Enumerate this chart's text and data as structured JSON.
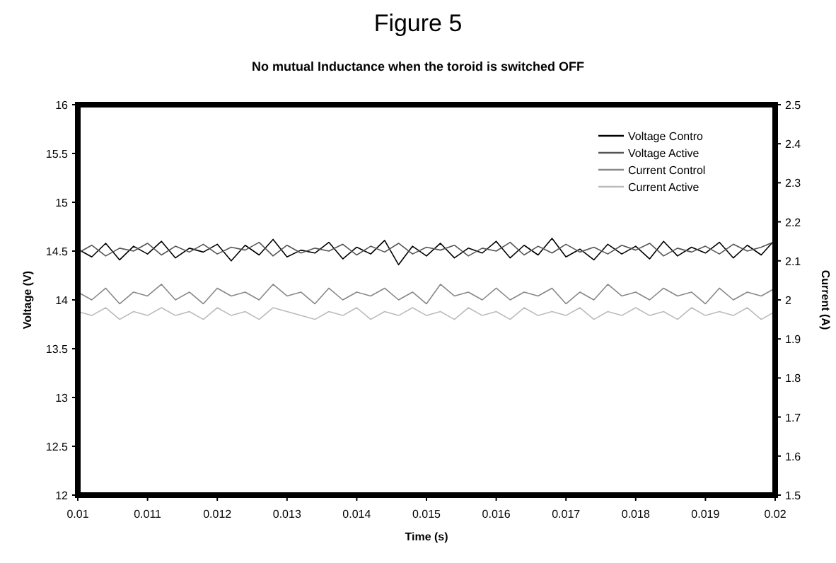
{
  "chart_data": {
    "type": "line",
    "title": "Figure 5",
    "subtitle": "No mutual Inductance when the toroid is switched OFF",
    "xlabel": "Time (s)",
    "ylabel": "Voltage (V)",
    "y2label": "Current (A)",
    "x": [
      0.01,
      0.0102,
      0.0104,
      0.0106,
      0.0108,
      0.011,
      0.0112,
      0.0114,
      0.0116,
      0.0118,
      0.012,
      0.0122,
      0.0124,
      0.0126,
      0.0128,
      0.013,
      0.0132,
      0.0134,
      0.0136,
      0.0138,
      0.014,
      0.0142,
      0.0144,
      0.0146,
      0.0148,
      0.015,
      0.0152,
      0.0154,
      0.0156,
      0.0158,
      0.016,
      0.0162,
      0.0164,
      0.0166,
      0.0168,
      0.017,
      0.0172,
      0.0174,
      0.0176,
      0.0178,
      0.018,
      0.0182,
      0.0184,
      0.0186,
      0.0188,
      0.019,
      0.0192,
      0.0194,
      0.0196,
      0.0198,
      0.02
    ],
    "xlim": [
      0.01,
      0.02
    ],
    "xticks": [
      0.01,
      0.011,
      0.012,
      0.013,
      0.014,
      0.015,
      0.016,
      0.017,
      0.018,
      0.019,
      0.02
    ],
    "ylim": [
      12,
      16
    ],
    "yticks": [
      12,
      12.5,
      13,
      13.5,
      14,
      14.5,
      15,
      15.5,
      16
    ],
    "y2lim": [
      1.5,
      2.5
    ],
    "y2ticks": [
      1.5,
      1.6,
      1.7,
      1.8,
      1.9,
      2,
      2.1,
      2.2,
      2.3,
      2.4,
      2.5
    ],
    "legend": "top right",
    "grid": false,
    "marker": "none",
    "series": [
      {
        "name": "Voltage Contro",
        "color": "#000000",
        "values": [
          14.52,
          14.44,
          14.58,
          14.41,
          14.55,
          14.47,
          14.6,
          14.43,
          14.53,
          14.49,
          14.57,
          14.4,
          14.56,
          14.46,
          14.62,
          14.44,
          14.51,
          14.48,
          14.59,
          14.42,
          14.54,
          14.47,
          14.61,
          14.36,
          14.55,
          14.45,
          14.58,
          14.43,
          14.53,
          14.48,
          14.6,
          14.43,
          14.56,
          14.46,
          14.63,
          14.44,
          14.52,
          14.41,
          14.57,
          14.47,
          14.55,
          14.42,
          14.6,
          14.45,
          14.54,
          14.48,
          14.59,
          14.43,
          14.56,
          14.46,
          14.62
        ]
      },
      {
        "name": "Voltage Active",
        "color": "#555555",
        "values": [
          14.48,
          14.56,
          14.45,
          14.53,
          14.5,
          14.58,
          14.46,
          14.55,
          14.49,
          14.57,
          14.47,
          14.54,
          14.51,
          14.59,
          14.45,
          14.56,
          14.48,
          14.53,
          14.5,
          14.57,
          14.46,
          14.55,
          14.49,
          14.58,
          14.47,
          14.54,
          14.51,
          14.56,
          14.45,
          14.53,
          14.5,
          14.59,
          14.46,
          14.55,
          14.48,
          14.57,
          14.49,
          14.54,
          14.47,
          14.56,
          14.51,
          14.58,
          14.45,
          14.53,
          14.49,
          14.55,
          14.47,
          14.57,
          14.5,
          14.54,
          14.6
        ]
      },
      {
        "name": "Current Control",
        "color": "#888888",
        "axis": "y2",
        "values": [
          2.02,
          2.0,
          2.03,
          1.99,
          2.02,
          2.01,
          2.04,
          2.0,
          2.02,
          1.99,
          2.03,
          2.01,
          2.02,
          2.0,
          2.04,
          2.01,
          2.02,
          1.99,
          2.03,
          2.0,
          2.02,
          2.01,
          2.03,
          2.0,
          2.02,
          1.99,
          2.04,
          2.01,
          2.02,
          2.0,
          2.03,
          2.0,
          2.02,
          2.01,
          2.03,
          1.99,
          2.02,
          2.0,
          2.04,
          2.01,
          2.02,
          2.0,
          2.03,
          2.01,
          2.02,
          1.99,
          2.03,
          2.0,
          2.02,
          2.01,
          2.03
        ]
      },
      {
        "name": "Current Active",
        "color": "#bbbbbb",
        "axis": "y2",
        "values": [
          1.97,
          1.96,
          1.98,
          1.95,
          1.97,
          1.96,
          1.98,
          1.96,
          1.97,
          1.95,
          1.98,
          1.96,
          1.97,
          1.95,
          1.98,
          1.97,
          1.96,
          1.95,
          1.97,
          1.96,
          1.98,
          1.95,
          1.97,
          1.96,
          1.98,
          1.96,
          1.97,
          1.95,
          1.98,
          1.96,
          1.97,
          1.95,
          1.98,
          1.96,
          1.97,
          1.96,
          1.98,
          1.95,
          1.97,
          1.96,
          1.98,
          1.96,
          1.97,
          1.95,
          1.98,
          1.96,
          1.97,
          1.96,
          1.98,
          1.95,
          1.97
        ]
      }
    ]
  }
}
